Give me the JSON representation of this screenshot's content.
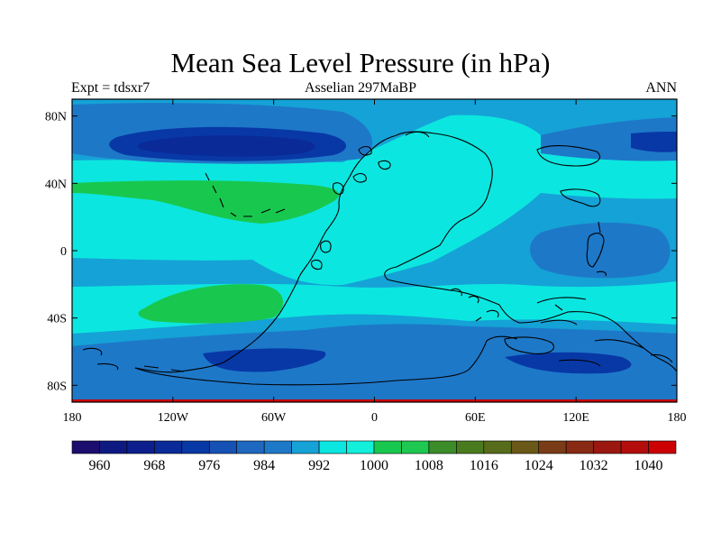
{
  "title": "Mean Sea Level Pressure (in hPa)",
  "subtitle_left": "Expt = tdsxr7",
  "subtitle_center": "Asselian 297MaBP",
  "subtitle_right": "ANN",
  "lat_ticks": [
    {
      "value": 80,
      "label": "80N"
    },
    {
      "value": 40,
      "label": "40N"
    },
    {
      "value": 0,
      "label": "0"
    },
    {
      "value": -40,
      "label": "40S"
    },
    {
      "value": -80,
      "label": "80S"
    }
  ],
  "lon_ticks": [
    {
      "value": -180,
      "label": "180"
    },
    {
      "value": -120,
      "label": "120W"
    },
    {
      "value": -60,
      "label": "60W"
    },
    {
      "value": 0,
      "label": "0"
    },
    {
      "value": 60,
      "label": "60E"
    },
    {
      "value": 120,
      "label": "120E"
    },
    {
      "value": 180,
      "label": "180"
    }
  ],
  "colorbar": {
    "colors": [
      "#1c0e6e",
      "#0e1a82",
      "#0c1f8c",
      "#0a2a98",
      "#0838a6",
      "#1652b4",
      "#1e68c0",
      "#1e78c8",
      "#15a2d6",
      "#0ce6e0",
      "#12f0dc",
      "#18c84e",
      "#1fc850",
      "#3c8c2a",
      "#4a7a1e",
      "#566c1a",
      "#6a5818",
      "#7a3c16",
      "#882a14",
      "#9a1810",
      "#b40e0c",
      "#cc0000"
    ],
    "labels": [
      {
        "index": 1,
        "text": "960"
      },
      {
        "index": 3,
        "text": "968"
      },
      {
        "index": 5,
        "text": "976"
      },
      {
        "index": 7,
        "text": "984"
      },
      {
        "index": 9,
        "text": "992"
      },
      {
        "index": 11,
        "text": "1000"
      },
      {
        "index": 13,
        "text": "1008"
      },
      {
        "index": 15,
        "text": "1016"
      },
      {
        "index": 17,
        "text": "1024"
      },
      {
        "index": 19,
        "text": "1032"
      },
      {
        "index": 21,
        "text": "1040"
      }
    ]
  },
  "field_colors": {
    "background": "#15a2d6",
    "high": "#0ce6e0",
    "low": "#1e78c8",
    "deep_low": "#0838a6",
    "core_low": "#0a2a98",
    "subtropical_high": "#18c84e",
    "polar_edge": "#cc0000",
    "coast": "#000000"
  }
}
